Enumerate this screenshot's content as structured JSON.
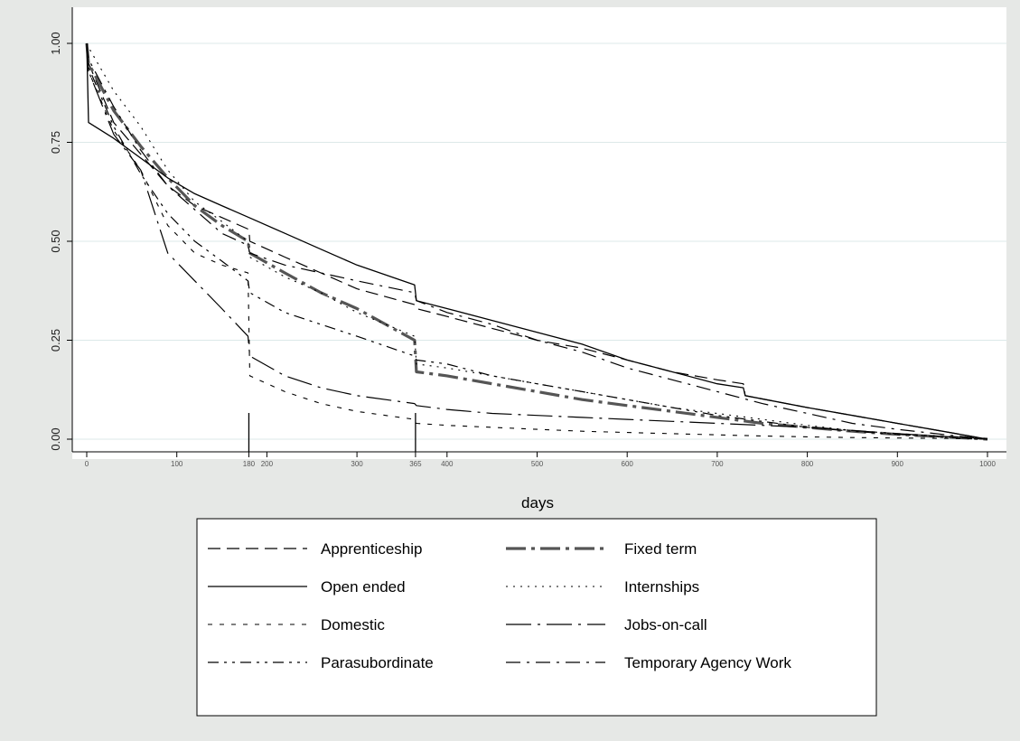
{
  "chart_data": {
    "type": "line",
    "title": "",
    "xlabel": "days",
    "ylabel": "",
    "xlim": [
      0,
      1000
    ],
    "ylim": [
      0,
      1
    ],
    "x_ticks": [
      0,
      100,
      200,
      300,
      400,
      500,
      600,
      700,
      800,
      900,
      1000
    ],
    "x_tick_labels": [
      "0",
      "100",
      "200",
      "300",
      "400",
      "500",
      "600",
      "700",
      "800",
      "900",
      "1000"
    ],
    "y_ticks": [
      0,
      0.25,
      0.5,
      0.75,
      1
    ],
    "y_tick_labels": [
      "0.00",
      "0.25",
      "0.50",
      "0.75",
      "1.00"
    ],
    "reference_lines": [
      {
        "x": 180,
        "label": "180"
      },
      {
        "x": 365,
        "label": "365"
      }
    ],
    "grid": "horizontal",
    "legend_position": "bottom",
    "series": [
      {
        "name": "Apprenticeship",
        "style": "dash",
        "color": "#000000",
        "x": [
          0,
          2,
          30,
          60,
          90,
          120,
          150,
          180,
          181,
          220,
          260,
          300,
          364,
          366,
          400,
          450,
          500,
          550,
          600,
          650,
          700,
          729,
          731,
          800,
          850,
          900,
          950,
          1000
        ],
        "y": [
          1.0,
          0.95,
          0.8,
          0.72,
          0.64,
          0.59,
          0.56,
          0.53,
          0.5,
          0.46,
          0.42,
          0.38,
          0.34,
          0.33,
          0.31,
          0.28,
          0.25,
          0.23,
          0.2,
          0.17,
          0.15,
          0.14,
          0.11,
          0.08,
          0.06,
          0.04,
          0.02,
          0.0
        ]
      },
      {
        "name": "Fixed term",
        "style": "longdashdot-thick",
        "color": "#555555",
        "x": [
          0,
          2,
          30,
          60,
          90,
          120,
          150,
          179,
          181,
          220,
          260,
          300,
          364,
          366,
          400,
          450,
          500,
          550,
          600,
          650,
          700,
          750,
          800,
          850,
          900,
          950,
          1000
        ],
        "y": [
          1.0,
          0.95,
          0.83,
          0.74,
          0.66,
          0.59,
          0.54,
          0.5,
          0.47,
          0.42,
          0.37,
          0.33,
          0.25,
          0.17,
          0.16,
          0.14,
          0.12,
          0.1,
          0.085,
          0.07,
          0.055,
          0.04,
          0.03,
          0.02,
          0.012,
          0.006,
          0.0
        ]
      },
      {
        "name": "Open ended",
        "style": "solid",
        "color": "#000000",
        "x": [
          0,
          2,
          30,
          60,
          90,
          120,
          150,
          180,
          220,
          260,
          300,
          364,
          366,
          400,
          450,
          500,
          550,
          600,
          650,
          700,
          729,
          731,
          800,
          850,
          900,
          950,
          1000
        ],
        "y": [
          1.0,
          0.8,
          0.76,
          0.71,
          0.66,
          0.62,
          0.59,
          0.56,
          0.52,
          0.48,
          0.44,
          0.39,
          0.35,
          0.33,
          0.3,
          0.27,
          0.24,
          0.2,
          0.17,
          0.14,
          0.13,
          0.11,
          0.08,
          0.06,
          0.04,
          0.02,
          0.0
        ]
      },
      {
        "name": "Internships",
        "style": "dot",
        "color": "#000000",
        "x": [
          0,
          2,
          30,
          60,
          90,
          120,
          150,
          179,
          181,
          220,
          260,
          300,
          364,
          366,
          400,
          450,
          500,
          550,
          600,
          650,
          700,
          750,
          800,
          850,
          900,
          950,
          1000
        ],
        "y": [
          1.0,
          0.99,
          0.88,
          0.79,
          0.68,
          0.6,
          0.55,
          0.5,
          0.46,
          0.41,
          0.37,
          0.32,
          0.26,
          0.19,
          0.18,
          0.16,
          0.14,
          0.12,
          0.1,
          0.08,
          0.065,
          0.05,
          0.035,
          0.022,
          0.012,
          0.005,
          0.0
        ]
      },
      {
        "name": "Domestic",
        "style": "shortdash",
        "color": "#000000",
        "x": [
          0,
          2,
          30,
          60,
          90,
          120,
          150,
          179,
          181,
          220,
          260,
          300,
          364,
          366,
          400,
          450,
          500,
          550,
          600,
          650,
          700,
          750,
          800,
          850,
          900,
          950,
          1000
        ],
        "y": [
          1.0,
          0.93,
          0.78,
          0.68,
          0.54,
          0.47,
          0.44,
          0.42,
          0.16,
          0.12,
          0.09,
          0.07,
          0.05,
          0.04,
          0.035,
          0.03,
          0.025,
          0.02,
          0.017,
          0.014,
          0.011,
          0.008,
          0.006,
          0.004,
          0.003,
          0.002,
          0.0
        ]
      },
      {
        "name": "Jobs-on-call",
        "style": "longdash-dot",
        "color": "#000000",
        "x": [
          0,
          2,
          30,
          60,
          90,
          120,
          150,
          179,
          181,
          220,
          260,
          300,
          364,
          366,
          400,
          450,
          500,
          550,
          600,
          650,
          700,
          750,
          800,
          850,
          900,
          950,
          1000
        ],
        "y": [
          1.0,
          0.93,
          0.77,
          0.68,
          0.47,
          0.4,
          0.33,
          0.26,
          0.21,
          0.16,
          0.13,
          0.11,
          0.09,
          0.085,
          0.075,
          0.065,
          0.06,
          0.055,
          0.05,
          0.045,
          0.04,
          0.035,
          0.03,
          0.022,
          0.014,
          0.007,
          0.0
        ]
      },
      {
        "name": "Parasubordinate",
        "style": "dashdotdot",
        "color": "#000000",
        "x": [
          0,
          2,
          30,
          60,
          90,
          120,
          150,
          179,
          181,
          220,
          260,
          300,
          364,
          366,
          400,
          450,
          500,
          550,
          600,
          650,
          700,
          750,
          800,
          850,
          900,
          950,
          1000
        ],
        "y": [
          1.0,
          0.94,
          0.79,
          0.67,
          0.57,
          0.5,
          0.45,
          0.4,
          0.37,
          0.32,
          0.29,
          0.26,
          0.21,
          0.2,
          0.19,
          0.16,
          0.14,
          0.12,
          0.1,
          0.08,
          0.06,
          0.045,
          0.03,
          0.02,
          0.012,
          0.006,
          0.0
        ]
      },
      {
        "name": "Temporary Agency Work",
        "style": "dash-dot",
        "color": "#000000",
        "x": [
          0,
          2,
          30,
          60,
          90,
          120,
          150,
          179,
          181,
          220,
          260,
          300,
          364,
          366,
          400,
          450,
          500,
          550,
          600,
          650,
          700,
          750,
          800,
          850,
          900,
          950,
          1000
        ],
        "y": [
          1.0,
          0.96,
          0.84,
          0.73,
          0.64,
          0.58,
          0.52,
          0.49,
          0.47,
          0.44,
          0.42,
          0.4,
          0.37,
          0.35,
          0.32,
          0.29,
          0.25,
          0.22,
          0.18,
          0.15,
          0.12,
          0.09,
          0.065,
          0.04,
          0.025,
          0.012,
          0.0
        ]
      }
    ],
    "legend": {
      "columns": 2,
      "order": [
        "Apprenticeship",
        "Fixed term",
        "Open ended",
        "Internships",
        "Domestic",
        "Jobs-on-call",
        "Parasubordinate",
        "Temporary Agency Work"
      ]
    }
  }
}
